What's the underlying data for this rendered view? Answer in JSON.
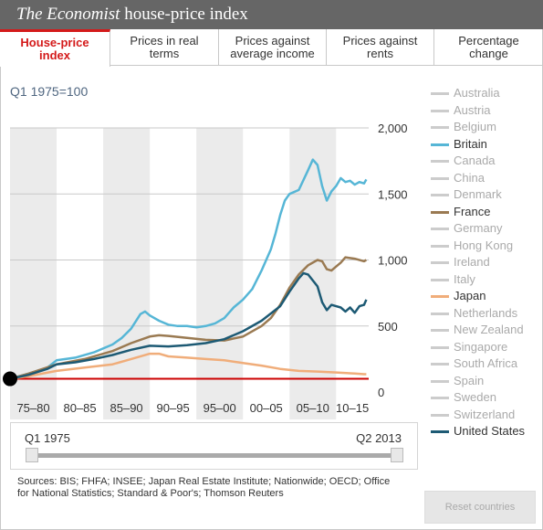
{
  "header": {
    "title_italic": "The Economist",
    "title_rest": " house-price index"
  },
  "tabs": [
    {
      "label": "House-price index",
      "active": true
    },
    {
      "label": "Prices in real terms",
      "active": false
    },
    {
      "label": "Prices against average income",
      "active": false
    },
    {
      "label": "Prices against rents",
      "active": false
    },
    {
      "label": "Percentage change",
      "active": false
    }
  ],
  "index_label": "Q1 1975=100",
  "legend": [
    {
      "name": "Australia",
      "on": false,
      "color": "#cccccc"
    },
    {
      "name": "Austria",
      "on": false,
      "color": "#cccccc"
    },
    {
      "name": "Belgium",
      "on": false,
      "color": "#cccccc"
    },
    {
      "name": "Britain",
      "on": true,
      "color": "#56b6d6"
    },
    {
      "name": "Canada",
      "on": false,
      "color": "#cccccc"
    },
    {
      "name": "China",
      "on": false,
      "color": "#cccccc"
    },
    {
      "name": "Denmark",
      "on": false,
      "color": "#cccccc"
    },
    {
      "name": "France",
      "on": true,
      "color": "#9a7a52"
    },
    {
      "name": "Germany",
      "on": false,
      "color": "#cccccc"
    },
    {
      "name": "Hong Kong",
      "on": false,
      "color": "#cccccc"
    },
    {
      "name": "Ireland",
      "on": false,
      "color": "#cccccc"
    },
    {
      "name": "Italy",
      "on": false,
      "color": "#cccccc"
    },
    {
      "name": "Japan",
      "on": true,
      "color": "#f0ad7a"
    },
    {
      "name": "Netherlands",
      "on": false,
      "color": "#cccccc"
    },
    {
      "name": "New Zealand",
      "on": false,
      "color": "#cccccc"
    },
    {
      "name": "Singapore",
      "on": false,
      "color": "#cccccc"
    },
    {
      "name": "South Africa",
      "on": false,
      "color": "#cccccc"
    },
    {
      "name": "Spain",
      "on": false,
      "color": "#cccccc"
    },
    {
      "name": "Sweden",
      "on": false,
      "color": "#cccccc"
    },
    {
      "name": "Switzerland",
      "on": false,
      "color": "#cccccc"
    },
    {
      "name": "United States",
      "on": true,
      "color": "#1d5a74"
    }
  ],
  "slider": {
    "start_label": "Q1 1975",
    "end_label": "Q2 2013"
  },
  "sources": "Sources: BIS; FHFA; INSEE; Japan Real Estate Institute; Nationwide; OECD; Office for National Statistics; Standard & Poor's; Thomson Reuters",
  "reset_label": "Reset countries",
  "chart_data": {
    "type": "line",
    "title": "",
    "xlabel": "",
    "ylabel": "",
    "xlim": [
      1975,
      2013.5
    ],
    "ylim": [
      0,
      2000
    ],
    "y_ticks": [
      0,
      500,
      1000,
      1500,
      2000
    ],
    "y_tick_labels": [
      "0",
      "500",
      "1,000",
      "1,500",
      "2,000"
    ],
    "x_bands": [
      "75–80",
      "80–85",
      "85–90",
      "90–95",
      "95–00",
      "00–05",
      "05–10",
      "10–15"
    ],
    "baseline": 100,
    "baseline_color": "#cc0000",
    "grid": true,
    "series": [
      {
        "name": "Britain",
        "color": "#56b6d6",
        "x": [
          1975,
          1977,
          1979,
          1980,
          1982,
          1984,
          1986,
          1987,
          1988,
          1989,
          1989.5,
          1990,
          1991,
          1992,
          1993,
          1994,
          1995,
          1996,
          1997,
          1998,
          1999,
          2000,
          2001,
          2002,
          2003,
          2003.5,
          2004,
          2004.5,
          2005,
          2006,
          2007,
          2007.5,
          2008,
          2008.5,
          2009,
          2009.5,
          2010,
          2010.5,
          2011,
          2011.5,
          2012,
          2012.5,
          2013,
          2013.25
        ],
        "y": [
          100,
          140,
          185,
          240,
          260,
          300,
          360,
          410,
          480,
          590,
          610,
          580,
          540,
          510,
          500,
          500,
          490,
          500,
          520,
          560,
          640,
          700,
          780,
          920,
          1080,
          1200,
          1340,
          1450,
          1500,
          1530,
          1680,
          1760,
          1720,
          1560,
          1450,
          1520,
          1560,
          1620,
          1590,
          1600,
          1570,
          1590,
          1580,
          1610
        ]
      },
      {
        "name": "France",
        "color": "#9a7a52",
        "x": [
          1975,
          1977,
          1980,
          1983,
          1986,
          1988,
          1990,
          1991,
          1992,
          1994,
          1996,
          1998,
          2000,
          2002,
          2003,
          2004,
          2005,
          2006,
          2007,
          2008,
          2008.5,
          2009,
          2009.5,
          2010,
          2010.5,
          2011,
          2012,
          2013,
          2013.25
        ],
        "y": [
          100,
          140,
          210,
          250,
          310,
          370,
          420,
          430,
          425,
          410,
          395,
          390,
          420,
          500,
          560,
          660,
          790,
          890,
          960,
          1000,
          990,
          930,
          920,
          950,
          980,
          1020,
          1010,
          990,
          1000
        ]
      },
      {
        "name": "Japan",
        "color": "#f0ad7a",
        "x": [
          1975,
          1977,
          1980,
          1983,
          1986,
          1988,
          1990,
          1991,
          1992,
          1994,
          1996,
          1998,
          2000,
          2002,
          2004,
          2006,
          2008,
          2010,
          2012,
          2013,
          2013.25
        ],
        "y": [
          100,
          120,
          160,
          185,
          210,
          250,
          290,
          290,
          270,
          260,
          250,
          240,
          220,
          200,
          175,
          160,
          155,
          148,
          140,
          135,
          135
        ]
      },
      {
        "name": "United States",
        "color": "#1d5a74",
        "x": [
          1975,
          1977,
          1979,
          1980,
          1982,
          1984,
          1986,
          1988,
          1990,
          1992,
          1994,
          1996,
          1998,
          2000,
          2002,
          2004,
          2005,
          2006,
          2006.5,
          2007,
          2008,
          2008.5,
          2009,
          2009.5,
          2010,
          2010.5,
          2011,
          2011.5,
          2012,
          2012.5,
          2013,
          2013.25
        ],
        "y": [
          100,
          130,
          175,
          210,
          225,
          250,
          280,
          320,
          350,
          345,
          355,
          370,
          400,
          460,
          540,
          650,
          760,
          860,
          900,
          890,
          800,
          680,
          620,
          660,
          650,
          640,
          610,
          640,
          600,
          650,
          660,
          700
        ]
      }
    ]
  }
}
